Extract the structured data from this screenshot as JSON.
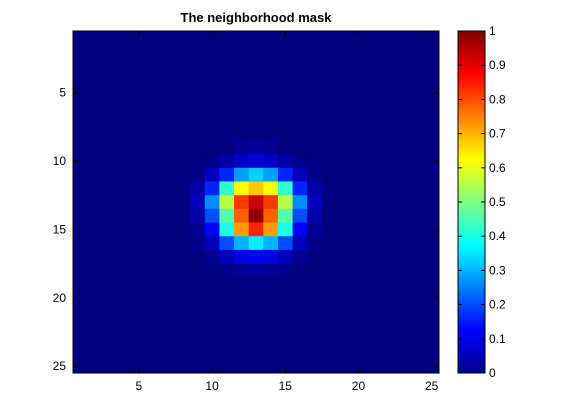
{
  "chart_data": {
    "type": "heatmap",
    "title": "The neighborhood mask",
    "xlabel": "",
    "ylabel": "",
    "grid": false,
    "colormap": "jet",
    "x_range": [
      1,
      25
    ],
    "y_range": [
      1,
      25
    ],
    "y_direction": "reversed",
    "center": [
      13,
      13
    ],
    "z_values": [
      [
        0.0,
        0.0,
        0.0,
        0.0,
        0.0,
        0.0,
        0.0,
        0.0,
        0.0,
        0.0,
        0.0,
        0.0,
        0.0,
        0.0,
        0.0,
        0.0,
        0.0,
        0.0,
        0.0,
        0.0,
        0.0,
        0.0,
        0.0,
        0.0,
        0.0
      ],
      [
        0.0,
        0.0,
        0.0,
        0.0,
        0.0,
        0.0,
        0.0,
        0.0,
        0.0,
        0.0,
        0.0,
        0.0,
        0.0,
        0.0,
        0.0,
        0.0,
        0.0,
        0.0,
        0.0,
        0.0,
        0.0,
        0.0,
        0.0,
        0.0,
        0.0
      ],
      [
        0.0,
        0.0,
        0.0,
        0.0,
        0.0,
        0.0,
        0.0,
        0.0,
        0.0,
        0.0,
        0.0,
        0.0,
        0.0,
        0.0,
        0.0,
        0.0,
        0.0,
        0.0,
        0.0,
        0.0,
        0.0,
        0.0,
        0.0,
        0.0,
        0.0
      ],
      [
        0.0,
        0.0,
        0.0,
        0.0,
        0.0,
        0.0,
        0.0,
        0.0,
        0.0,
        0.0,
        0.0,
        0.0,
        0.0,
        0.0,
        0.0,
        0.0,
        0.0,
        0.0,
        0.0,
        0.0,
        0.0,
        0.0,
        0.0,
        0.0,
        0.0
      ],
      [
        0.0,
        0.0,
        0.0,
        0.0,
        0.0,
        0.0,
        0.0,
        0.0,
        0.0,
        0.0,
        0.0,
        0.0,
        0.0,
        0.0,
        0.0,
        0.0,
        0.0,
        0.0,
        0.0,
        0.0,
        0.0,
        0.0,
        0.0,
        0.0,
        0.0
      ],
      [
        0.0,
        0.0,
        0.0,
        0.0,
        0.0,
        0.0,
        0.0,
        0.0,
        0.0,
        0.0,
        0.0,
        0.0,
        0.0,
        0.0,
        0.0,
        0.0,
        0.0,
        0.0,
        0.0,
        0.0,
        0.0,
        0.0,
        0.0,
        0.0,
        0.0
      ],
      [
        0.0,
        0.0,
        0.0,
        0.0,
        0.0,
        0.0,
        0.0,
        0.0,
        0.0,
        0.0,
        0.0,
        0.0,
        0.0,
        0.0,
        0.0,
        0.0,
        0.0,
        0.0,
        0.0,
        0.0,
        0.0,
        0.0,
        0.0,
        0.0,
        0.0
      ],
      [
        0.0,
        0.0,
        0.0,
        0.0,
        0.0,
        0.0,
        0.0,
        0.0,
        0.0,
        0.0,
        0.0,
        0.0,
        0.0,
        0.0,
        0.0,
        0.0,
        0.0,
        0.0,
        0.0,
        0.0,
        0.0,
        0.0,
        0.0,
        0.0,
        0.0
      ],
      [
        0.0,
        0.0,
        0.0,
        0.0,
        0.0,
        0.0,
        0.0,
        0.0,
        0.0,
        0.0,
        0.0,
        0.02,
        0.03,
        0.02,
        0.0,
        0.0,
        0.0,
        0.0,
        0.0,
        0.0,
        0.0,
        0.0,
        0.0,
        0.0,
        0.0
      ],
      [
        0.0,
        0.0,
        0.0,
        0.0,
        0.0,
        0.0,
        0.0,
        0.0,
        0.0,
        0.01,
        0.04,
        0.07,
        0.09,
        0.07,
        0.04,
        0.01,
        0.0,
        0.0,
        0.0,
        0.0,
        0.0,
        0.0,
        0.0,
        0.0,
        0.0
      ],
      [
        0.0,
        0.0,
        0.0,
        0.0,
        0.0,
        0.0,
        0.0,
        0.0,
        0.01,
        0.06,
        0.16,
        0.28,
        0.33,
        0.28,
        0.16,
        0.06,
        0.01,
        0.0,
        0.0,
        0.0,
        0.0,
        0.0,
        0.0,
        0.0,
        0.0
      ],
      [
        0.0,
        0.0,
        0.0,
        0.0,
        0.0,
        0.0,
        0.0,
        0.0,
        0.04,
        0.16,
        0.42,
        0.62,
        0.68,
        0.62,
        0.42,
        0.16,
        0.04,
        0.0,
        0.0,
        0.0,
        0.0,
        0.0,
        0.0,
        0.0,
        0.0
      ],
      [
        0.0,
        0.0,
        0.0,
        0.0,
        0.0,
        0.0,
        0.0,
        0.0,
        0.06,
        0.26,
        0.56,
        0.82,
        0.92,
        0.82,
        0.56,
        0.26,
        0.06,
        0.0,
        0.0,
        0.0,
        0.0,
        0.0,
        0.0,
        0.0,
        0.0
      ],
      [
        0.0,
        0.0,
        0.0,
        0.0,
        0.0,
        0.0,
        0.0,
        0.0,
        0.04,
        0.2,
        0.46,
        0.78,
        0.98,
        0.78,
        0.46,
        0.2,
        0.04,
        0.0,
        0.0,
        0.0,
        0.0,
        0.0,
        0.0,
        0.0,
        0.0
      ],
      [
        0.0,
        0.0,
        0.0,
        0.0,
        0.0,
        0.0,
        0.0,
        0.0,
        0.02,
        0.12,
        0.4,
        0.72,
        0.84,
        0.72,
        0.4,
        0.12,
        0.02,
        0.0,
        0.0,
        0.0,
        0.0,
        0.0,
        0.0,
        0.0,
        0.0
      ],
      [
        0.0,
        0.0,
        0.0,
        0.0,
        0.0,
        0.0,
        0.0,
        0.0,
        0.01,
        0.06,
        0.2,
        0.3,
        0.36,
        0.3,
        0.2,
        0.06,
        0.01,
        0.0,
        0.0,
        0.0,
        0.0,
        0.0,
        0.0,
        0.0,
        0.0
      ],
      [
        0.0,
        0.0,
        0.0,
        0.0,
        0.0,
        0.0,
        0.0,
        0.0,
        0.0,
        0.02,
        0.06,
        0.1,
        0.12,
        0.1,
        0.06,
        0.02,
        0.0,
        0.0,
        0.0,
        0.0,
        0.0,
        0.0,
        0.0,
        0.0,
        0.0
      ],
      [
        0.0,
        0.0,
        0.0,
        0.0,
        0.0,
        0.0,
        0.0,
        0.0,
        0.0,
        0.0,
        0.01,
        0.02,
        0.03,
        0.02,
        0.01,
        0.0,
        0.0,
        0.0,
        0.0,
        0.0,
        0.0,
        0.0,
        0.0,
        0.0,
        0.0
      ],
      [
        0.0,
        0.0,
        0.0,
        0.0,
        0.0,
        0.0,
        0.0,
        0.0,
        0.0,
        0.0,
        0.0,
        0.0,
        0.0,
        0.0,
        0.0,
        0.0,
        0.0,
        0.0,
        0.0,
        0.0,
        0.0,
        0.0,
        0.0,
        0.0,
        0.0
      ],
      [
        0.0,
        0.0,
        0.0,
        0.0,
        0.0,
        0.0,
        0.0,
        0.0,
        0.0,
        0.0,
        0.0,
        0.0,
        0.0,
        0.0,
        0.0,
        0.0,
        0.0,
        0.0,
        0.0,
        0.0,
        0.0,
        0.0,
        0.0,
        0.0,
        0.0
      ],
      [
        0.0,
        0.0,
        0.0,
        0.0,
        0.0,
        0.0,
        0.0,
        0.0,
        0.0,
        0.0,
        0.0,
        0.0,
        0.0,
        0.0,
        0.0,
        0.0,
        0.0,
        0.0,
        0.0,
        0.0,
        0.0,
        0.0,
        0.0,
        0.0,
        0.0
      ],
      [
        0.0,
        0.0,
        0.0,
        0.0,
        0.0,
        0.0,
        0.0,
        0.0,
        0.0,
        0.0,
        0.0,
        0.0,
        0.0,
        0.0,
        0.0,
        0.0,
        0.0,
        0.0,
        0.0,
        0.0,
        0.0,
        0.0,
        0.0,
        0.0,
        0.0
      ],
      [
        0.0,
        0.0,
        0.0,
        0.0,
        0.0,
        0.0,
        0.0,
        0.0,
        0.0,
        0.0,
        0.0,
        0.0,
        0.0,
        0.0,
        0.0,
        0.0,
        0.0,
        0.0,
        0.0,
        0.0,
        0.0,
        0.0,
        0.0,
        0.0,
        0.0
      ],
      [
        0.0,
        0.0,
        0.0,
        0.0,
        0.0,
        0.0,
        0.0,
        0.0,
        0.0,
        0.0,
        0.0,
        0.0,
        0.0,
        0.0,
        0.0,
        0.0,
        0.0,
        0.0,
        0.0,
        0.0,
        0.0,
        0.0,
        0.0,
        0.0,
        0.0
      ],
      [
        0.0,
        0.0,
        0.0,
        0.0,
        0.0,
        0.0,
        0.0,
        0.0,
        0.0,
        0.0,
        0.0,
        0.0,
        0.0,
        0.0,
        0.0,
        0.0,
        0.0,
        0.0,
        0.0,
        0.0,
        0.0,
        0.0,
        0.0,
        0.0,
        0.0
      ]
    ],
    "x_ticks": [
      5,
      10,
      15,
      20,
      25
    ],
    "y_ticks": [
      5,
      10,
      15,
      20,
      25
    ],
    "colorbar": {
      "min": 0,
      "max": 1,
      "ticks": [
        "0",
        "0.1",
        "0.2",
        "0.3",
        "0.4",
        "0.5",
        "0.6",
        "0.7",
        "0.8",
        "0.9",
        "1"
      ]
    }
  }
}
